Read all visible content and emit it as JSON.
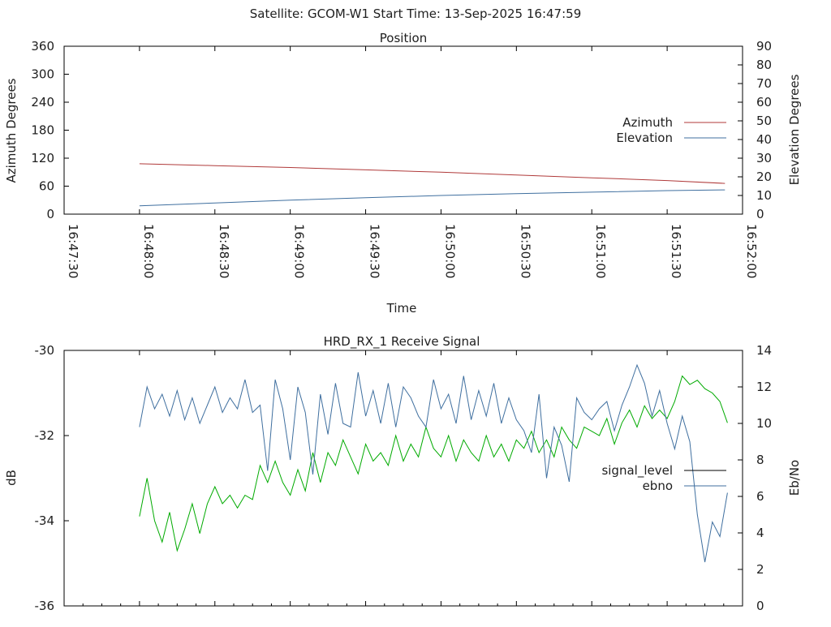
{
  "header": {
    "title": "Satellite: GCOM-W1    Start Time: 13-Sep-2025 16:47:59"
  },
  "chart_data": [
    {
      "type": "line",
      "title": "Position",
      "xlabel": "Time",
      "ylabel": "Azimuth Degrees",
      "y2label": "Elevation Degrees",
      "xlim": [
        "16:47:30",
        "16:52:00"
      ],
      "x_ticks": [
        "16:47:30",
        "16:48:00",
        "16:48:30",
        "16:49:00",
        "16:49:30",
        "16:50:00",
        "16:50:30",
        "16:51:00",
        "16:51:30",
        "16:52:00"
      ],
      "ylim": [
        0,
        360
      ],
      "y_ticks": [
        "0",
        "60",
        "120",
        "180",
        "240",
        "300",
        "360"
      ],
      "y2lim": [
        0,
        90
      ],
      "y2_ticks": [
        "0",
        "10",
        "20",
        "30",
        "40",
        "50",
        "60",
        "70",
        "80",
        "90"
      ],
      "legend_position": "right",
      "grid": false,
      "series": [
        {
          "name": "Azimuth",
          "axis": "left",
          "color": "#b03a3a",
          "x": [
            "16:48:00",
            "16:48:30",
            "16:49:00",
            "16:49:30",
            "16:50:00",
            "16:50:30",
            "16:51:00",
            "16:51:30",
            "16:51:53"
          ],
          "values": [
            108,
            104,
            100,
            95,
            90,
            84,
            78,
            72,
            66
          ]
        },
        {
          "name": "Elevation",
          "axis": "right",
          "color": "#3f6f9f",
          "x": [
            "16:48:00",
            "16:48:30",
            "16:49:00",
            "16:49:30",
            "16:50:00",
            "16:50:30",
            "16:51:00",
            "16:51:30",
            "16:51:53"
          ],
          "values": [
            4.5,
            6.0,
            7.5,
            8.8,
            10.0,
            11.0,
            11.8,
            12.6,
            13.0
          ]
        }
      ]
    },
    {
      "type": "line",
      "title": "HRD_RX_1 Receive Signal",
      "ylabel": "dB",
      "y2label": "Eb/No",
      "xlim": [
        "16:47:30",
        "16:52:00"
      ],
      "ylim": [
        -36,
        -30
      ],
      "y_ticks": [
        "-36",
        "-34",
        "-32",
        "-30"
      ],
      "y2lim": [
        0,
        14
      ],
      "y2_ticks": [
        "0",
        "2",
        "4",
        "6",
        "8",
        "10",
        "12",
        "14"
      ],
      "legend_position": "right",
      "grid": false,
      "series": [
        {
          "name": "signal_level",
          "axis": "left",
          "color": "#00aa00",
          "legend_color": "#000000",
          "x": [
            "16:48:00",
            "16:48:03",
            "16:48:06",
            "16:48:09",
            "16:48:12",
            "16:48:15",
            "16:48:18",
            "16:48:21",
            "16:48:24",
            "16:48:27",
            "16:48:30",
            "16:48:33",
            "16:48:36",
            "16:48:39",
            "16:48:42",
            "16:48:45",
            "16:48:48",
            "16:48:51",
            "16:48:54",
            "16:48:57",
            "16:49:00",
            "16:49:03",
            "16:49:06",
            "16:49:09",
            "16:49:12",
            "16:49:15",
            "16:49:18",
            "16:49:21",
            "16:49:24",
            "16:49:27",
            "16:49:30",
            "16:49:33",
            "16:49:36",
            "16:49:39",
            "16:49:42",
            "16:49:45",
            "16:49:48",
            "16:49:51",
            "16:49:54",
            "16:49:57",
            "16:50:00",
            "16:50:03",
            "16:50:06",
            "16:50:09",
            "16:50:12",
            "16:50:15",
            "16:50:18",
            "16:50:21",
            "16:50:24",
            "16:50:27",
            "16:50:30",
            "16:50:33",
            "16:50:36",
            "16:50:39",
            "16:50:42",
            "16:50:45",
            "16:50:48",
            "16:50:51",
            "16:50:54",
            "16:50:57",
            "16:51:00",
            "16:51:03",
            "16:51:06",
            "16:51:09",
            "16:51:12",
            "16:51:15",
            "16:51:18",
            "16:51:21",
            "16:51:24",
            "16:51:27",
            "16:51:30",
            "16:51:33",
            "16:51:36",
            "16:51:39",
            "16:51:42",
            "16:51:45",
            "16:51:48",
            "16:51:51",
            "16:51:54"
          ],
          "values": [
            -33.9,
            -33.0,
            -34.0,
            -34.5,
            -33.8,
            -34.7,
            -34.2,
            -33.6,
            -34.3,
            -33.6,
            -33.2,
            -33.6,
            -33.4,
            -33.7,
            -33.4,
            -33.5,
            -32.7,
            -33.1,
            -32.6,
            -33.1,
            -33.4,
            -32.8,
            -33.3,
            -32.4,
            -33.1,
            -32.4,
            -32.7,
            -32.1,
            -32.5,
            -32.9,
            -32.2,
            -32.6,
            -32.4,
            -32.7,
            -32.0,
            -32.6,
            -32.2,
            -32.5,
            -31.8,
            -32.3,
            -32.5,
            -32.0,
            -32.6,
            -32.1,
            -32.4,
            -32.6,
            -32.0,
            -32.5,
            -32.2,
            -32.6,
            -32.1,
            -32.3,
            -31.9,
            -32.4,
            -32.1,
            -32.5,
            -31.8,
            -32.1,
            -32.3,
            -31.8,
            -31.9,
            -32.0,
            -31.6,
            -32.2,
            -31.7,
            -31.4,
            -31.8,
            -31.3,
            -31.6,
            -31.4,
            -31.6,
            -31.2,
            -30.6,
            -30.8,
            -30.7,
            -30.9,
            -31.0,
            -31.2,
            -31.7
          ]
        },
        {
          "name": "ebno",
          "axis": "right",
          "color": "#3f6f9f",
          "legend_color": "#3f6f9f",
          "x": [
            "16:48:00",
            "16:48:03",
            "16:48:06",
            "16:48:09",
            "16:48:12",
            "16:48:15",
            "16:48:18",
            "16:48:21",
            "16:48:24",
            "16:48:27",
            "16:48:30",
            "16:48:33",
            "16:48:36",
            "16:48:39",
            "16:48:42",
            "16:48:45",
            "16:48:48",
            "16:48:51",
            "16:48:54",
            "16:48:57",
            "16:49:00",
            "16:49:03",
            "16:49:06",
            "16:49:09",
            "16:49:12",
            "16:49:15",
            "16:49:18",
            "16:49:21",
            "16:49:24",
            "16:49:27",
            "16:49:30",
            "16:49:33",
            "16:49:36",
            "16:49:39",
            "16:49:42",
            "16:49:45",
            "16:49:48",
            "16:49:51",
            "16:49:54",
            "16:49:57",
            "16:50:00",
            "16:50:03",
            "16:50:06",
            "16:50:09",
            "16:50:12",
            "16:50:15",
            "16:50:18",
            "16:50:21",
            "16:50:24",
            "16:50:27",
            "16:50:30",
            "16:50:33",
            "16:50:36",
            "16:50:39",
            "16:50:42",
            "16:50:45",
            "16:50:48",
            "16:50:51",
            "16:50:54",
            "16:50:57",
            "16:51:00",
            "16:51:03",
            "16:51:06",
            "16:51:09",
            "16:51:12",
            "16:51:15",
            "16:51:18",
            "16:51:21",
            "16:51:24",
            "16:51:27",
            "16:51:30",
            "16:51:33",
            "16:51:36",
            "16:51:39",
            "16:51:42",
            "16:51:45",
            "16:51:48",
            "16:51:51",
            "16:51:54"
          ],
          "values": [
            9.8,
            12.0,
            10.8,
            11.6,
            10.4,
            11.8,
            10.2,
            11.4,
            10.0,
            11.0,
            12.0,
            10.6,
            11.4,
            10.8,
            12.4,
            10.6,
            11.0,
            7.4,
            12.4,
            10.8,
            8.0,
            12.0,
            10.6,
            7.2,
            11.6,
            9.4,
            12.2,
            10.0,
            9.8,
            12.8,
            10.4,
            11.8,
            10.0,
            12.2,
            9.8,
            12.0,
            11.4,
            10.4,
            9.8,
            12.4,
            10.8,
            11.6,
            10.0,
            12.6,
            10.2,
            11.8,
            10.4,
            12.2,
            10.0,
            11.4,
            10.2,
            9.6,
            8.4,
            11.6,
            7.0,
            9.8,
            8.8,
            6.8,
            11.4,
            10.6,
            10.2,
            10.8,
            11.2,
            9.6,
            11.0,
            12.0,
            13.2,
            12.2,
            10.4,
            11.8,
            10.0,
            8.6,
            10.4,
            9.0,
            5.0,
            2.4,
            4.6,
            3.8,
            6.2
          ]
        }
      ]
    }
  ]
}
